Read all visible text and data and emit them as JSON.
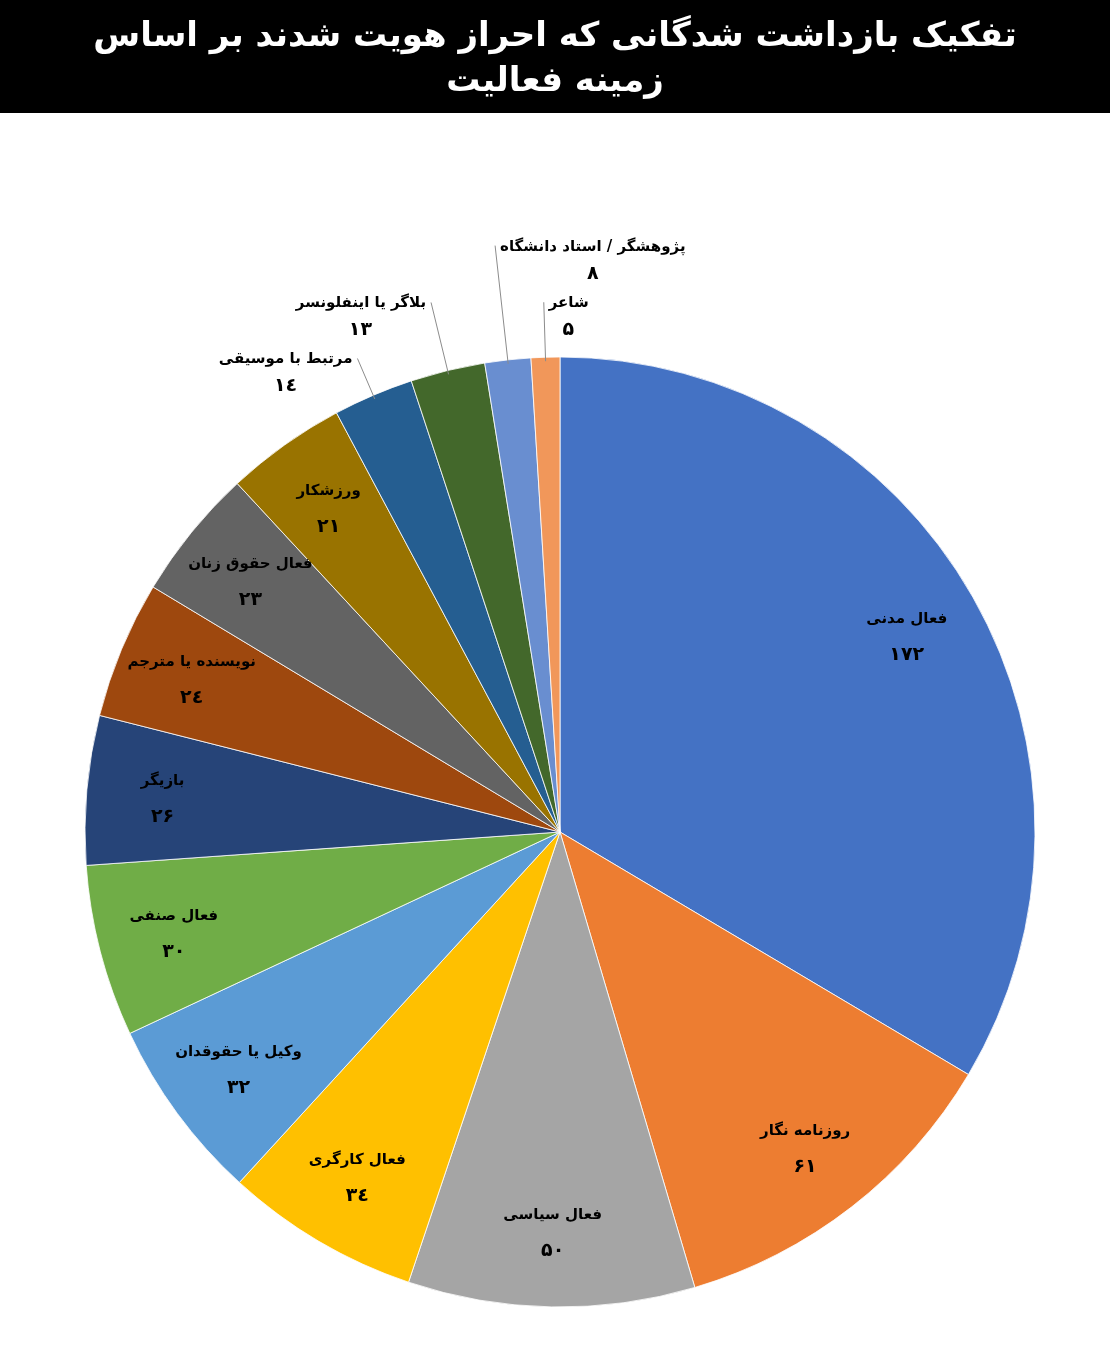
{
  "chart_data": {
    "type": "pie",
    "title": "تفکیک بازداشت شدگانی که احراز هویت شدند بر اساس زمینه فعالیت",
    "categories": [
      "فعال مدنی",
      "روزنامه نگار",
      "فعال سیاسی",
      "فعال کارگری",
      "وکیل یا حقوقدان",
      "فعال صنفی",
      "بازیگر",
      "نویسنده یا مترجم",
      "فعال حقوق زنان",
      "ورزشکار",
      "مرتبط با موسیقی",
      "بلاگر یا اینفلونسر",
      "پژوهشگر / استاد دانشگاه",
      "شاعر"
    ],
    "values": [
      172,
      61,
      50,
      34,
      32,
      30,
      26,
      24,
      23,
      21,
      14,
      13,
      8,
      5
    ],
    "colors": [
      "#4472c4",
      "#ed7d31",
      "#a5a5a5",
      "#ffc000",
      "#5b9bd5",
      "#70ad47",
      "#264478",
      "#9e480e",
      "#636363",
      "#997300",
      "#255e91",
      "#43682b",
      "#698ed0",
      "#f1975a"
    ],
    "value_labels": [
      "۱۷۲",
      "۶۱",
      "۵۰",
      "۳٤",
      "۳۲",
      "۳۰",
      "۲۶",
      "۲٤",
      "۲۳",
      "۲۱",
      "۱٤",
      "۱۳",
      "۸",
      "۵"
    ]
  }
}
